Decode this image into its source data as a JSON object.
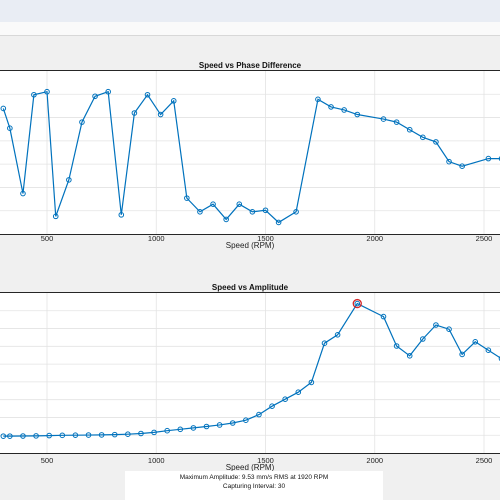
{
  "charts": {
    "phase": {
      "title": "Speed vs Phase Difference",
      "xlabel": "Speed (RPM)",
      "xticks": [
        "500",
        "1000",
        "1500",
        "2000",
        "2500"
      ]
    },
    "amplitude": {
      "title": "Speed vs Amplitude",
      "xlabel": "Speed (RPM)",
      "xticks": [
        "500",
        "1000",
        "1500",
        "2000",
        "2500"
      ]
    }
  },
  "footer": {
    "max_amplitude": "Maximum Amplitude: 9.53 mm/s RMS at 1920 RPM",
    "interval": "Capturing Interval: 30"
  },
  "chart_data": [
    {
      "type": "line",
      "title": "Speed vs Phase Difference",
      "xlabel": "Speed (RPM)",
      "ylabel": "",
      "xlim": [
        320,
        2600
      ],
      "ylim": [
        0,
        100
      ],
      "grid": true,
      "series": [
        {
          "color": "#0072bd",
          "x": [
            300,
            330,
            390,
            440,
            500,
            540,
            600,
            660,
            720,
            780,
            840,
            900,
            960,
            1020,
            1080,
            1140,
            1200,
            1260,
            1320,
            1380,
            1440,
            1500,
            1560,
            1640,
            1740,
            1800,
            1860,
            1920,
            2040,
            2100,
            2160,
            2220,
            2280,
            2340,
            2400,
            2520,
            2580
          ],
          "y": [
            78,
            65,
            22,
            87,
            89,
            7,
            31,
            69,
            86,
            89,
            8,
            75,
            87,
            74,
            83,
            19,
            10,
            15,
            5,
            15,
            10,
            11,
            3,
            10,
            84,
            79,
            77,
            74,
            71,
            69,
            64,
            59,
            56,
            43,
            40,
            45,
            45
          ]
        }
      ]
    },
    {
      "type": "line",
      "title": "Speed vs Amplitude",
      "xlabel": "Speed (RPM)",
      "ylabel": "",
      "xlim": [
        320,
        2600
      ],
      "ylim": [
        0,
        10
      ],
      "grid": true,
      "series": [
        {
          "color": "#0072bd",
          "x": [
            300,
            330,
            390,
            450,
            510,
            570,
            630,
            690,
            750,
            810,
            870,
            930,
            990,
            1050,
            1110,
            1170,
            1230,
            1290,
            1350,
            1410,
            1470,
            1530,
            1590,
            1650,
            1710,
            1770,
            1830,
            1920,
            2040,
            2100,
            2160,
            2220,
            2280,
            2340,
            2400,
            2460,
            2520,
            2580,
            2640
          ],
          "y": [
            0.06,
            0.06,
            0.07,
            0.08,
            0.1,
            0.12,
            0.13,
            0.14,
            0.15,
            0.17,
            0.2,
            0.25,
            0.33,
            0.45,
            0.55,
            0.65,
            0.75,
            0.86,
            1.0,
            1.2,
            1.6,
            2.2,
            2.7,
            3.2,
            3.9,
            6.7,
            7.3,
            9.53,
            8.6,
            6.5,
            5.8,
            7.0,
            8.0,
            7.7,
            5.9,
            6.8,
            6.2,
            5.6,
            5.1
          ]
        }
      ],
      "highlight": {
        "x": 1920,
        "y": 9.53,
        "color": "#d62728"
      }
    }
  ]
}
